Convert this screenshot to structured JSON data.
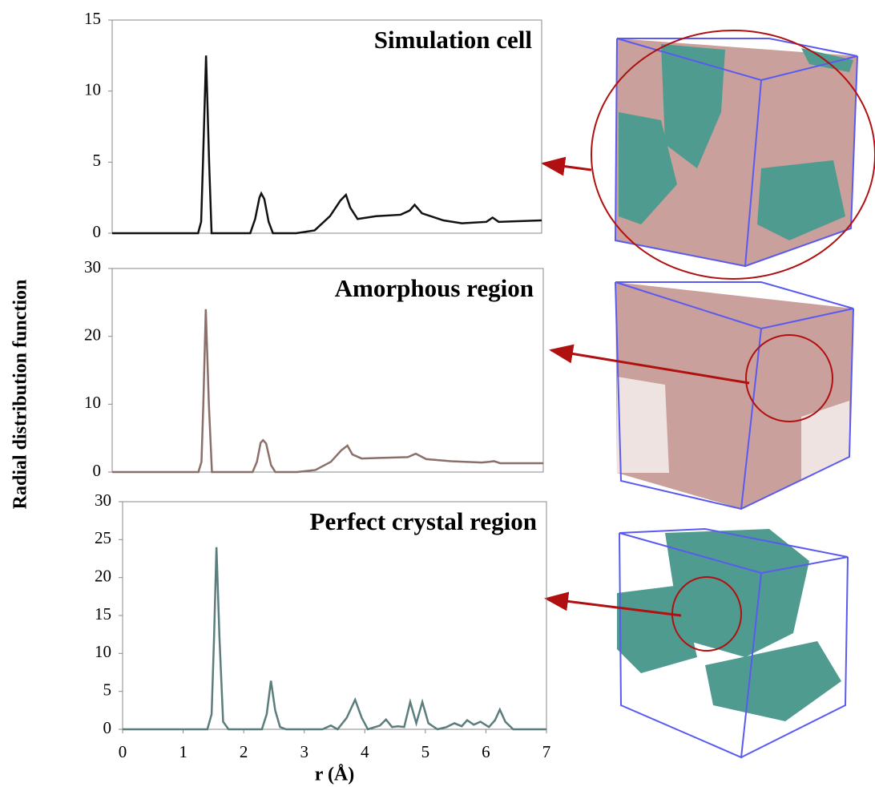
{
  "chart_data": [
    {
      "type": "line",
      "title": "Simulation cell",
      "color": "#111111",
      "x": [
        0,
        1.4,
        1.45,
        1.48,
        1.53,
        1.58,
        1.62,
        2.25,
        2.33,
        2.4,
        2.43,
        2.48,
        2.55,
        2.62,
        3.0,
        3.3,
        3.55,
        3.72,
        3.81,
        3.88,
        4.0,
        4.3,
        4.7,
        4.85,
        4.93,
        5.05,
        5.4,
        5.7,
        6.1,
        6.2,
        6.3,
        7
      ],
      "values": [
        0,
        0,
        0.8,
        5,
        12.5,
        5,
        0,
        0,
        1.0,
        2.5,
        2.8,
        2.4,
        0.8,
        0,
        0,
        0.2,
        1.2,
        2.3,
        2.7,
        1.8,
        1.0,
        1.2,
        1.3,
        1.6,
        2.0,
        1.4,
        0.9,
        0.7,
        0.8,
        1.1,
        0.8,
        0.9
      ],
      "xlim": [
        0,
        7
      ],
      "ylim": [
        0,
        15
      ],
      "yticks": [
        0,
        5,
        10,
        15
      ]
    },
    {
      "type": "line",
      "title": "Amorphous region",
      "color": "#8b6f69",
      "y_label": "Radial distribution function",
      "x": [
        0,
        1.4,
        1.45,
        1.48,
        1.52,
        1.57,
        1.62,
        2.28,
        2.35,
        2.41,
        2.45,
        2.5,
        2.58,
        2.65,
        3.0,
        3.3,
        3.55,
        3.72,
        3.82,
        3.9,
        4.05,
        4.4,
        4.8,
        4.93,
        5.1,
        5.5,
        6.0,
        6.12,
        6.2,
        6.3,
        7
      ],
      "values": [
        0,
        0,
        1.5,
        10,
        24,
        10,
        0,
        0,
        1.5,
        4.3,
        4.7,
        4.2,
        1.0,
        0,
        0,
        0.3,
        1.5,
        3.2,
        3.9,
        2.6,
        2.0,
        2.1,
        2.2,
        2.7,
        1.9,
        1.6,
        1.4,
        1.5,
        1.6,
        1.3,
        1.3
      ],
      "xlim": [
        0,
        7
      ],
      "ylim": [
        0,
        30
      ],
      "yticks": [
        0,
        10,
        20,
        30
      ]
    },
    {
      "type": "line",
      "title": "Perfect crystal region",
      "color": "#5b7d7b",
      "x_label": "r (Å)",
      "x": [
        0,
        1.4,
        1.47,
        1.51,
        1.55,
        1.6,
        1.66,
        1.75,
        2.3,
        2.38,
        2.45,
        2.52,
        2.6,
        2.7,
        3.3,
        3.44,
        3.55,
        3.7,
        3.84,
        3.95,
        4.05,
        4.25,
        4.35,
        4.45,
        4.55,
        4.65,
        4.75,
        4.85,
        4.95,
        5.05,
        5.2,
        5.35,
        5.48,
        5.6,
        5.69,
        5.8,
        5.91,
        6.05,
        6.15,
        6.23,
        6.32,
        6.45,
        7
      ],
      "values": [
        0,
        0,
        2,
        12,
        24,
        12,
        1,
        0,
        0,
        2,
        6.4,
        2.5,
        0.3,
        0,
        0,
        0.5,
        0,
        1.5,
        3.9,
        1.5,
        0,
        0.5,
        1.3,
        0.3,
        0.4,
        0.3,
        3.6,
        0.8,
        3.6,
        0.8,
        0,
        0.3,
        0.8,
        0.4,
        1.2,
        0.6,
        1.0,
        0.3,
        1.2,
        2.6,
        1.0,
        0,
        0
      ],
      "xlim": [
        0,
        7
      ],
      "ylim": [
        0,
        30
      ],
      "yticks": [
        0,
        5,
        10,
        15,
        20,
        25,
        30
      ],
      "xticks": [
        0,
        1,
        2,
        3,
        4,
        5,
        6,
        7
      ]
    }
  ]
}
